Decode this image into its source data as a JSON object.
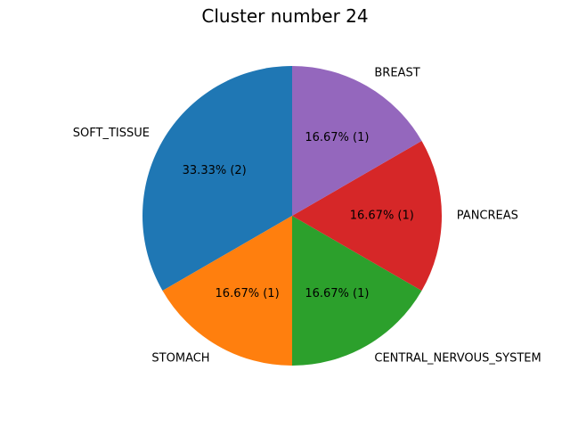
{
  "chart_data": {
    "type": "pie",
    "title": "Cluster number 24",
    "start_angle_deg": 90,
    "direction": "counterclockwise",
    "slices": [
      {
        "label": "SOFT_TISSUE",
        "value": 2,
        "percent_label": "33.33%  (2)",
        "color": "#1f77b4"
      },
      {
        "label": "STOMACH",
        "value": 1,
        "percent_label": "16.67%  (1)",
        "color": "#ff7f0e"
      },
      {
        "label": "CENTRAL_NERVOUS_SYSTEM",
        "value": 1,
        "percent_label": "16.67%  (1)",
        "color": "#2ca02c"
      },
      {
        "label": "PANCREAS",
        "value": 1,
        "percent_label": "16.67%  (1)",
        "color": "#d62728"
      },
      {
        "label": "BREAST",
        "value": 1,
        "percent_label": "16.67%  (1)",
        "color": "#9467bd"
      }
    ]
  }
}
